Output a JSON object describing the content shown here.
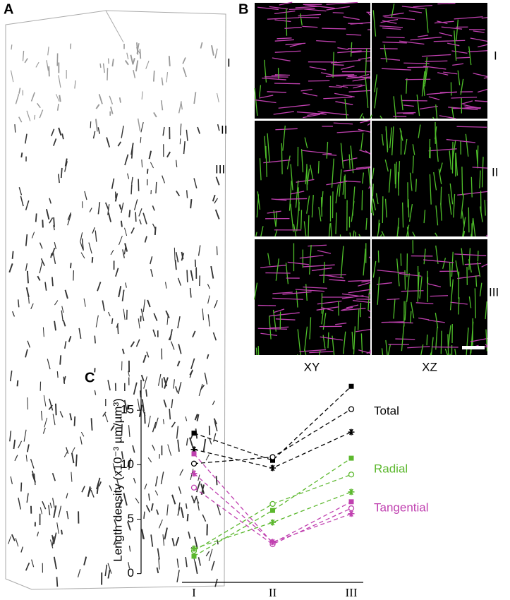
{
  "panels": {
    "a": {
      "label": "A",
      "layers": [
        "I",
        "II",
        "III"
      ]
    },
    "b": {
      "label": "B",
      "layers": [
        "I",
        "II",
        "III"
      ],
      "columns": [
        "XY",
        "XZ"
      ]
    },
    "c": {
      "label": "C"
    }
  },
  "chart_data": {
    "type": "line",
    "ylabel": "Length density (x10⁻³ µm/µm³)",
    "categories": [
      "I",
      "II",
      "III"
    ],
    "ylim": [
      -0.8,
      17.8
    ],
    "yticks": [
      0,
      5,
      10,
      15
    ],
    "series": [
      {
        "name": "Total",
        "color": "#000000",
        "marker": "square",
        "values": [
          12.9,
          10.4,
          17.2
        ]
      },
      {
        "name": "Total",
        "color": "#000000",
        "marker": "circle",
        "values": [
          10.1,
          10.7,
          15.1
        ]
      },
      {
        "name": "Total",
        "color": "#000000",
        "marker": "star",
        "values": [
          11.4,
          9.7,
          13.0
        ]
      },
      {
        "name": "Radial",
        "color": "#5cb82e",
        "marker": "square",
        "values": [
          1.6,
          5.8,
          10.6
        ]
      },
      {
        "name": "Radial",
        "color": "#5cb82e",
        "marker": "circle",
        "values": [
          2.1,
          6.4,
          9.1
        ]
      },
      {
        "name": "Radial",
        "color": "#5cb82e",
        "marker": "star",
        "values": [
          2.3,
          4.7,
          7.5
        ]
      },
      {
        "name": "Tangential",
        "color": "#c040b0",
        "marker": "square",
        "values": [
          11.0,
          2.8,
          6.6
        ]
      },
      {
        "name": "Tangential",
        "color": "#c040b0",
        "marker": "circle",
        "values": [
          7.9,
          2.7,
          6.0
        ]
      },
      {
        "name": "Tangential",
        "color": "#c040b0",
        "marker": "star",
        "values": [
          9.2,
          2.9,
          5.5
        ]
      }
    ],
    "annotations": [
      {
        "text": "Total",
        "color": "#000000"
      },
      {
        "text": "Radial",
        "color": "#5cb82e"
      },
      {
        "text": "Tangential",
        "color": "#c040b0"
      }
    ]
  }
}
